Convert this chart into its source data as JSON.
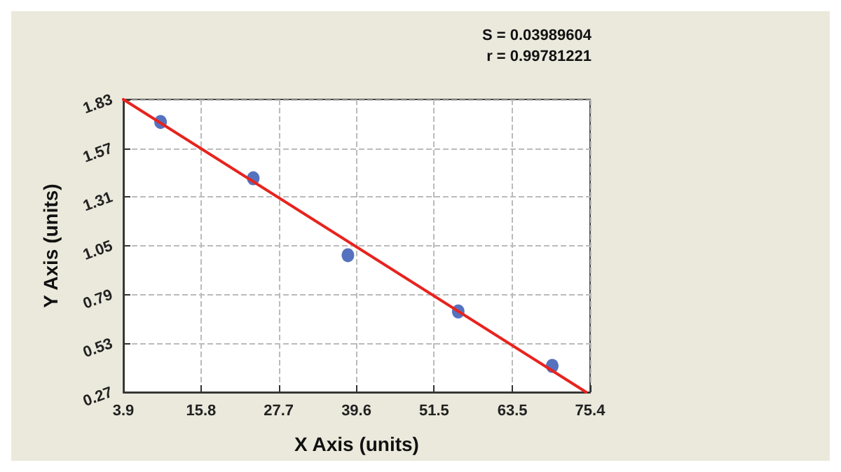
{
  "chart_data": {
    "type": "scatter",
    "xlabel": "X Axis (units)",
    "ylabel": "Y Axis (units)",
    "annotations": [
      "S = 0.03989604",
      "r = 0.99781221"
    ],
    "xlim": [
      3.9,
      75.4
    ],
    "xticks": [
      3.9,
      15.8,
      27.7,
      39.6,
      51.5,
      63.5,
      75.4
    ],
    "ylim": [
      0.27,
      1.83
    ],
    "yticks": [
      0.27,
      0.53,
      0.79,
      1.05,
      1.31,
      1.57,
      1.83
    ],
    "grid": true,
    "series": [
      {
        "color": "#2b4fae",
        "marker": "circle",
        "x": [
          9.6,
          23.8,
          38.3,
          55.2,
          69.6
        ],
        "values": [
          1.71,
          1.41,
          1.0,
          0.7,
          0.41
        ]
      },
      {
        "type": "line",
        "color": "#e8231e",
        "marker": "none",
        "line_style": "solid",
        "x": [
          3.9,
          74.8
        ],
        "values": [
          1.83,
          0.27
        ]
      }
    ]
  }
}
